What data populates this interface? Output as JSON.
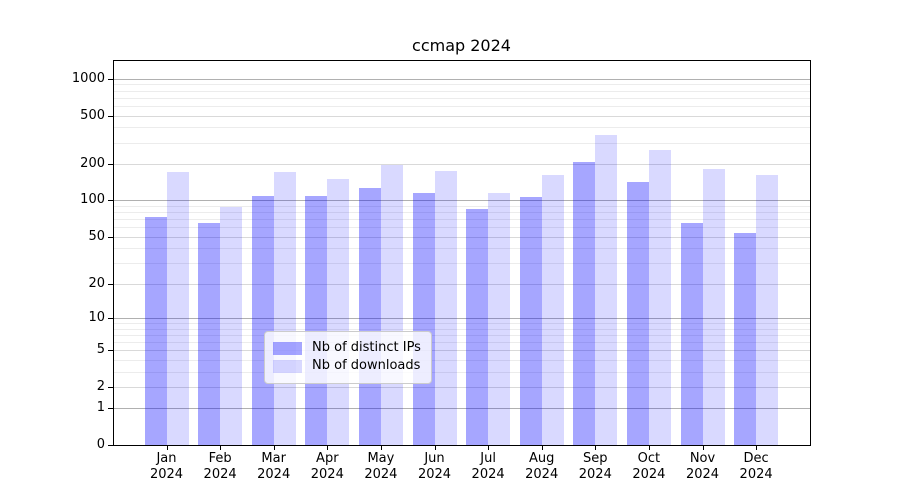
{
  "chart_data": {
    "type": "bar",
    "title": "ccmap 2024",
    "categories": [
      "Jan",
      "Feb",
      "Mar",
      "Apr",
      "May",
      "Jun",
      "Jul",
      "Aug",
      "Sep",
      "Oct",
      "Nov",
      "Dec"
    ],
    "category_year": "2024",
    "x_tick_labels": [
      "Jan 2024",
      "Feb 2024",
      "Mar 2024",
      "Apr 2024",
      "May 2024",
      "Jun 2024",
      "Jul 2024",
      "Aug 2024",
      "Sep 2024",
      "Oct 2024",
      "Nov 2024",
      "Dec 2024"
    ],
    "series": [
      {
        "name": "Nb of distinct IPs",
        "color": "#a6a6ff",
        "color_rgba": "rgba(0,0,255,0.35)",
        "values": [
          73,
          65,
          109,
          109,
          127,
          116,
          85,
          107,
          207,
          141,
          65,
          54
        ]
      },
      {
        "name": "Nb of downloads",
        "color": "#d9d9ff",
        "color_rgba": "rgba(0,0,255,0.15)",
        "values": [
          173,
          88,
          173,
          150,
          196,
          174,
          115,
          161,
          345,
          259,
          181,
          161
        ]
      }
    ],
    "yscale": "log1p",
    "ylim": [
      0,
      1400
    ],
    "y_ticks_labeled": [
      0,
      1,
      2,
      5,
      10,
      20,
      50,
      100,
      200,
      500,
      1000
    ],
    "y_ticks_major": [
      1,
      10,
      100,
      1000
    ],
    "y_minor_gridline_values": [
      3,
      4,
      6,
      7,
      8,
      9,
      30,
      40,
      60,
      70,
      80,
      90,
      300,
      400,
      600,
      700,
      800,
      900
    ],
    "grid": true,
    "legend_position": "lower center",
    "legend_entries": [
      "Nb of distinct IPs",
      "Nb of downloads"
    ]
  },
  "colors": {
    "grid_major": "#b0b0b0",
    "grid_minor_labeled": "#d9d9d9",
    "grid_minor": "#ececec",
    "axis": "#000000",
    "background": "#ffffff"
  }
}
